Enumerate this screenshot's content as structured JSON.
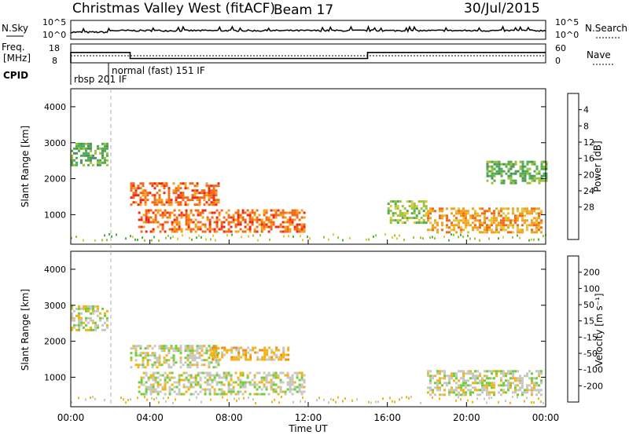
{
  "header": {
    "station": "Christmas Valley West (fitACF)",
    "beam": "Beam 17",
    "date": "30/Jul/2015"
  },
  "noise_panel": {
    "left_label": "N.Sky",
    "right_label": "N.Search",
    "left_ticks": [
      "10^5",
      "10^0"
    ],
    "right_ticks": [
      "10^5",
      "10^0"
    ]
  },
  "freq_panel": {
    "left_label_1": "Freq.",
    "left_label_2": "[MHz]",
    "right_label": "Nave",
    "left_ticks": [
      "18",
      "8"
    ],
    "right_ticks": [
      "60",
      "0"
    ],
    "frequency_mhz": [
      {
        "t0": 0.0,
        "t1": 3.0,
        "value": 13.5
      },
      {
        "t0": 3.0,
        "t1": 15.0,
        "value": 10.3
      },
      {
        "t0": 15.0,
        "t1": 24.0,
        "value": 13.5
      }
    ]
  },
  "cpid": {
    "label": "CPID",
    "modes": [
      {
        "name": "rbsp 201 IF",
        "start_ut": 0.0
      },
      {
        "name": "normal (fast) 151 IF",
        "start_ut": 1.9
      }
    ]
  },
  "chart_data": [
    {
      "type": "heatmap",
      "name": "power",
      "ylabel": "Slant Range [km]",
      "ylim": [
        180,
        4500
      ],
      "yticks": [
        "1000",
        "2000",
        "3000",
        "4000"
      ],
      "xlim": [
        0,
        24
      ],
      "colorbar_label": "Power [dB]",
      "colorbar_ticks": [
        "4",
        "8",
        "12",
        "16",
        "20",
        "24",
        "28"
      ],
      "colors": [
        "#1f3fd6",
        "#2c6bb8",
        "#4f8f6a",
        "#4fae4f",
        "#9ec23a",
        "#e7c53a",
        "#f6a020",
        "#f36b1a",
        "#ee2a12"
      ],
      "regions": [
        {
          "t0": 3.0,
          "t1": 7.5,
          "r0": 1300,
          "r1": 1900,
          "level": 7
        },
        {
          "t0": 3.4,
          "t1": 11.8,
          "r0": 550,
          "r1": 1150,
          "level": 7
        },
        {
          "t0": 18.0,
          "t1": 23.8,
          "r0": 500,
          "r1": 1200,
          "level": 6
        },
        {
          "t0": 0.0,
          "t1": 1.9,
          "r0": 2400,
          "r1": 3000,
          "level": 3
        },
        {
          "t0": 16.0,
          "t1": 18.0,
          "r0": 800,
          "r1": 1400,
          "level": 4
        },
        {
          "t0": 21.0,
          "t1": 24.0,
          "r0": 1900,
          "r1": 2500,
          "level": 3
        }
      ]
    },
    {
      "type": "heatmap",
      "name": "velocity",
      "ylabel": "Slant Range [km]",
      "ylim": [
        180,
        4500
      ],
      "yticks": [
        "1000",
        "2000",
        "3000",
        "4000"
      ],
      "xlim": [
        0,
        24
      ],
      "xlabel": "Time UT",
      "xticks": [
        "00:00",
        "04:00",
        "08:00",
        "12:00",
        "16:00",
        "20:00",
        "00:00"
      ],
      "colorbar_label": "Velocity [m s⁻¹]",
      "colorbar_ticks": [
        "200",
        "100",
        "50",
        "15",
        "-15",
        "-50",
        "-100",
        "-200"
      ],
      "colors": [
        "#1f3fd6",
        "#2f6ab0",
        "#3d9a5a",
        "#6cd03a",
        "#c8c8c0",
        "#f1b41a",
        "#f28a10",
        "#f05a10",
        "#ee1a12"
      ],
      "regions": [
        {
          "t0": 3.0,
          "t1": 7.5,
          "r0": 1300,
          "r1": 1900,
          "level": 4
        },
        {
          "t0": 3.4,
          "t1": 11.8,
          "r0": 550,
          "r1": 1150,
          "level": 4
        },
        {
          "t0": 7.0,
          "t1": 11.0,
          "r0": 1500,
          "r1": 1850,
          "level": 5
        },
        {
          "t0": 18.0,
          "t1": 23.8,
          "r0": 500,
          "r1": 1200,
          "level": 4
        },
        {
          "t0": 0.0,
          "t1": 1.9,
          "r0": 2300,
          "r1": 3000,
          "level": 4
        }
      ]
    }
  ]
}
